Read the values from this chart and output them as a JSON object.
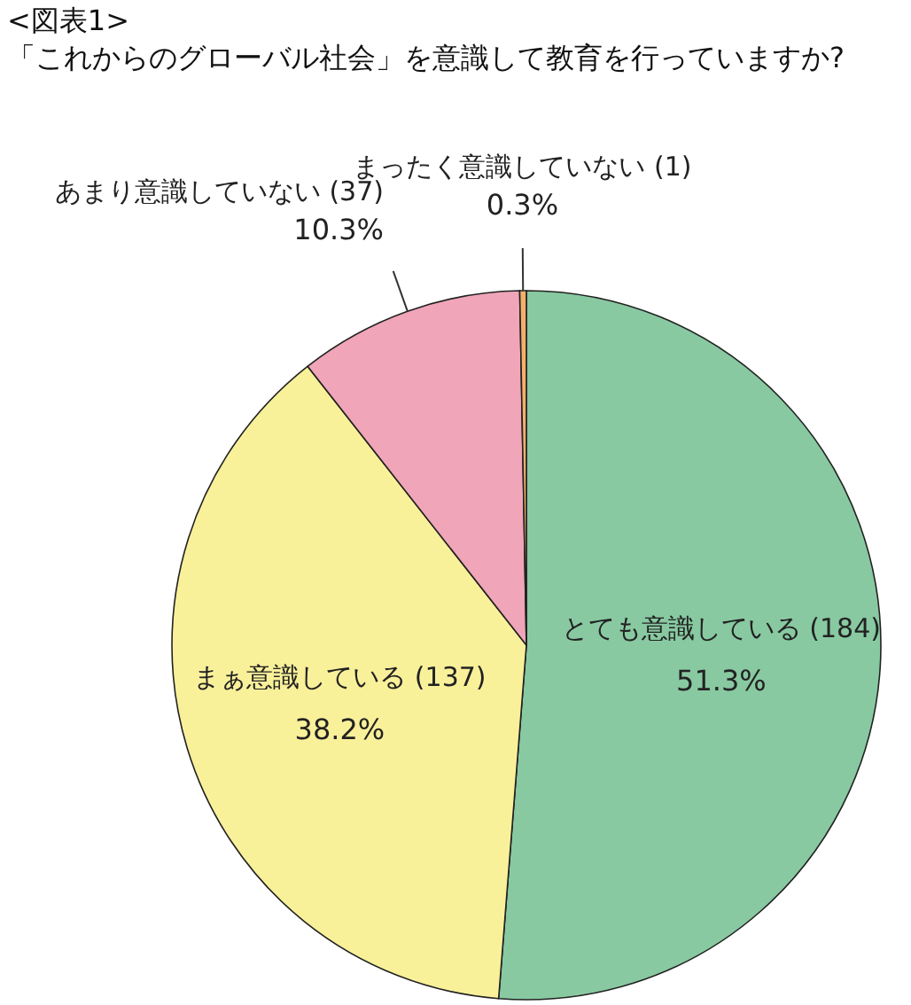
{
  "chart_data": {
    "type": "pie",
    "title": "<図表1>",
    "subtitle": "「これからのグローバル社会」を意識して教育を行っていますか?",
    "categories": [
      "とても意識している (184)",
      "まぁ意識している (137)",
      "あまり意識していない (37)",
      "まったく意識していない (1)"
    ],
    "values": [
      51.3,
      38.2,
      10.3,
      0.3
    ],
    "colors": [
      "#88c9a1",
      "#f9f09a",
      "#f0a5b8",
      "#f4b06a"
    ],
    "value_labels": [
      "51.3%",
      "38.2%",
      "10.3%",
      "0.3%"
    ]
  }
}
